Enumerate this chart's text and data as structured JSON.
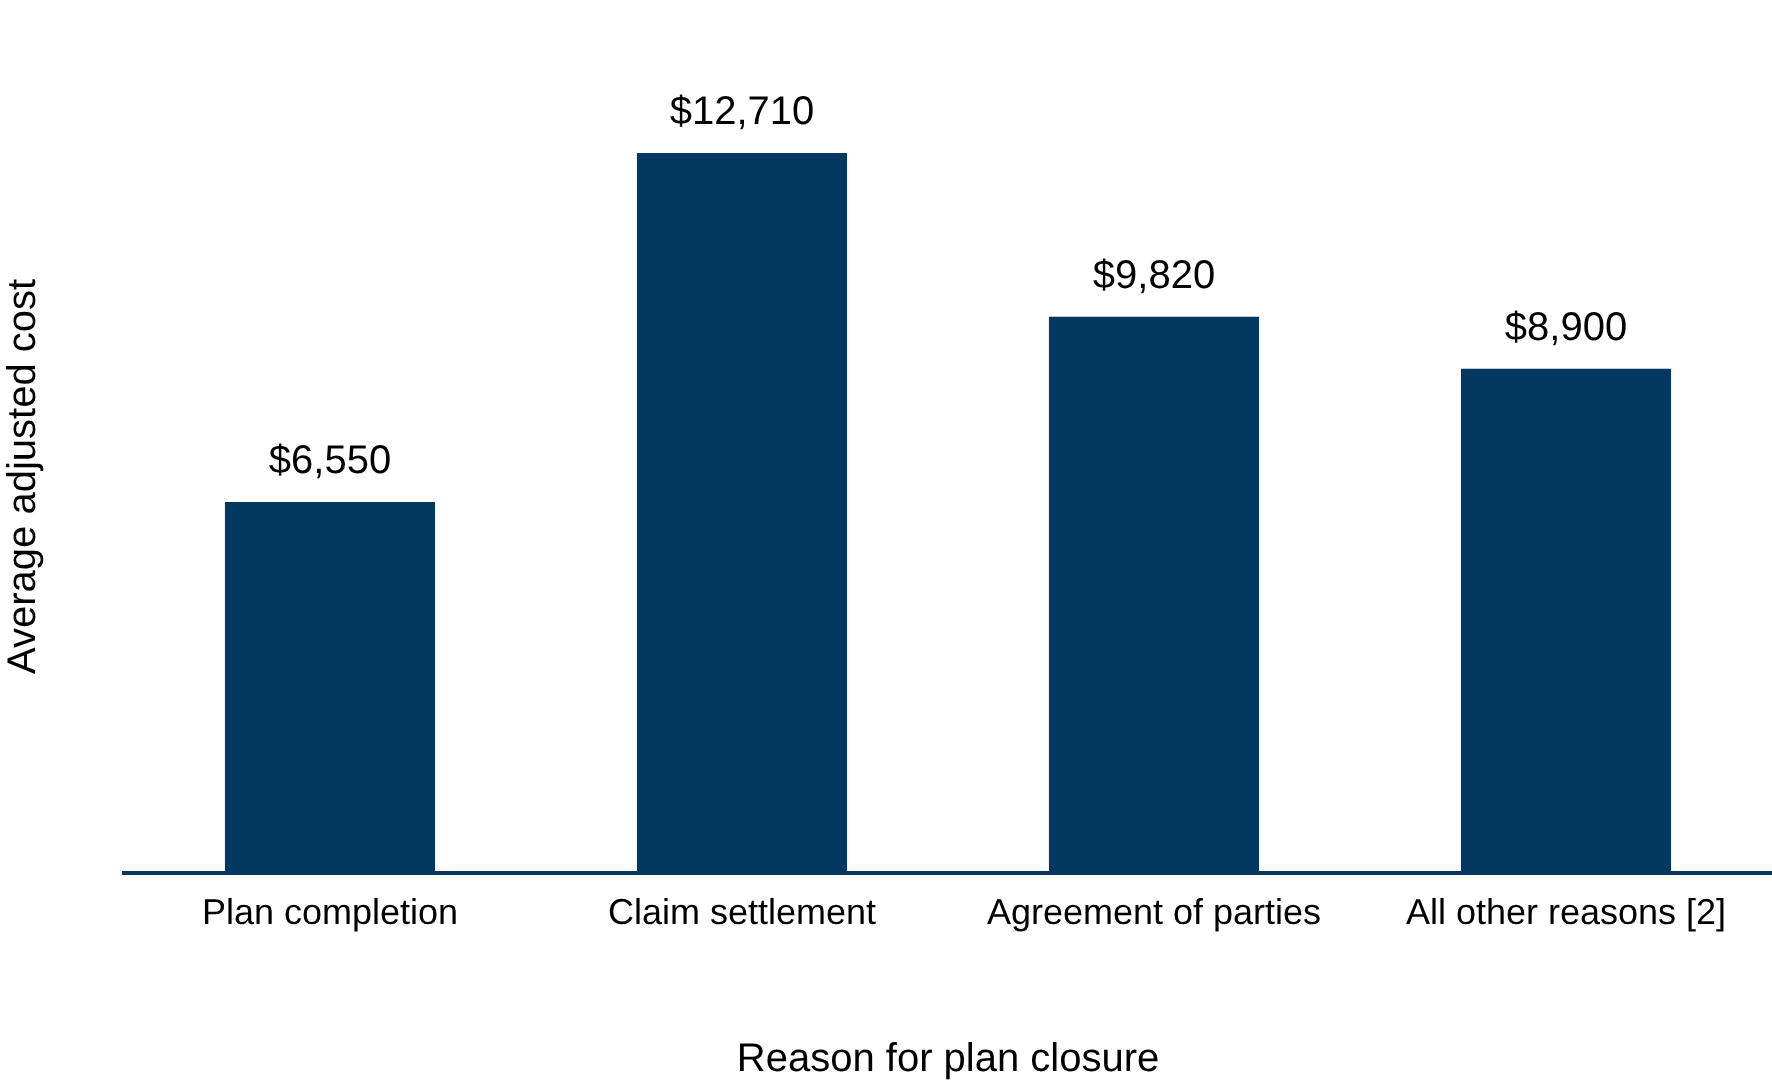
{
  "chart_data": {
    "type": "bar",
    "xlabel": "Reason for plan closure",
    "ylabel": "Average adjusted cost",
    "categories": [
      "Plan completion",
      "Claim settlement",
      "Agreement of parties",
      "All other reasons [2]"
    ],
    "values": [
      6550,
      12710,
      9820,
      8900
    ],
    "value_labels": [
      "$6,550",
      "$12,710",
      "$9,820",
      "$8,900"
    ],
    "color": "#02375f",
    "grid": false,
    "legend": false
  }
}
